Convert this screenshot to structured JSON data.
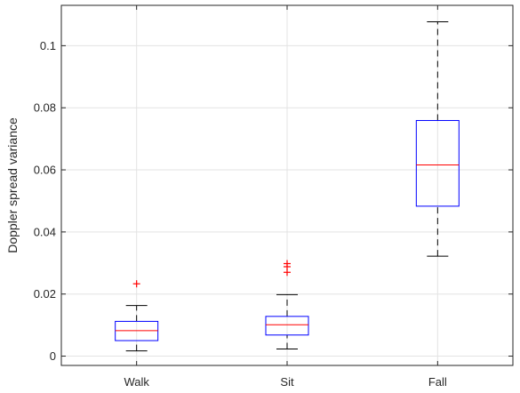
{
  "chart_data": {
    "type": "boxplot",
    "title": "",
    "xlabel": "",
    "ylabel": "Doppler spread variance",
    "ylim": [
      -0.003,
      0.113
    ],
    "yticks": [
      0,
      0.02,
      0.04,
      0.06,
      0.08,
      0.1
    ],
    "ytick_labels": [
      "0",
      "0.02",
      "0.04",
      "0.06",
      "0.08",
      "0.1"
    ],
    "grid": true,
    "categories": [
      "Walk",
      "Sit",
      "Fall"
    ],
    "series": [
      {
        "category": "Walk",
        "whisker_low": 0.0017,
        "q1": 0.005,
        "median": 0.0082,
        "q3": 0.0112,
        "whisker_high": 0.0163,
        "outliers": [
          0.0233
        ]
      },
      {
        "category": "Sit",
        "whisker_low": 0.0023,
        "q1": 0.0068,
        "median": 0.0101,
        "q3": 0.0128,
        "whisker_high": 0.0198,
        "outliers": [
          0.027,
          0.0288,
          0.0298
        ]
      },
      {
        "category": "Fall",
        "whisker_low": 0.0322,
        "q1": 0.0483,
        "median": 0.0616,
        "q3": 0.0759,
        "whisker_high": 0.1077,
        "outliers": []
      }
    ],
    "colors": {
      "box": "#0000ff",
      "median": "#ff0000",
      "whisker": "#000000",
      "outlier": "#ff0000",
      "grid": "#e3e3e3",
      "axis": "#262626"
    }
  }
}
